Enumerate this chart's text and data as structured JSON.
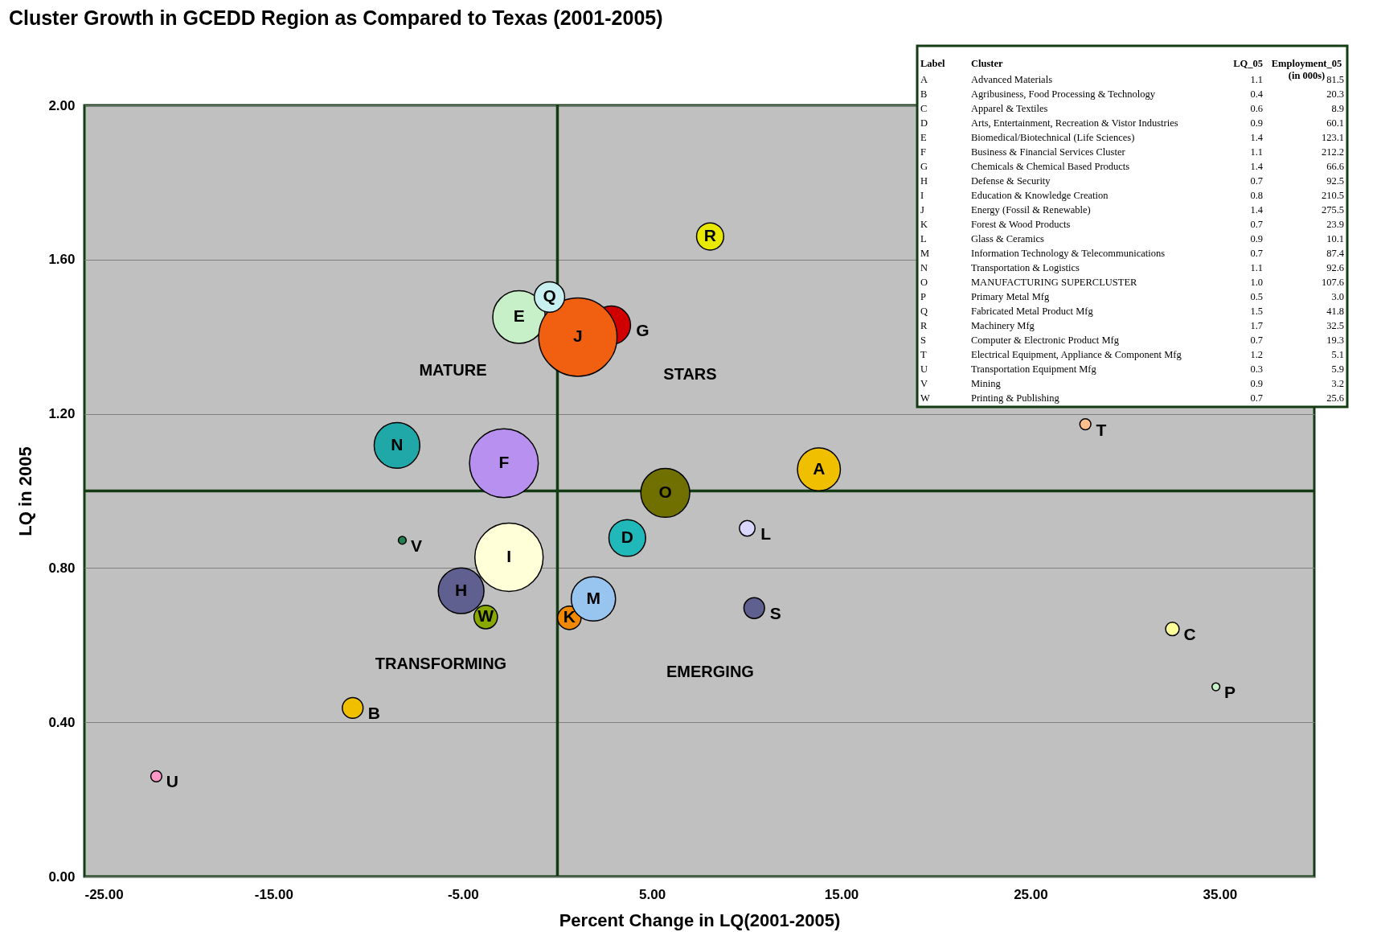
{
  "chart_data": {
    "type": "bubble",
    "title": "Cluster Growth in GCEDD Region as Compared to Texas (2001-2005)",
    "xlabel": "Percent Change in LQ(2001-2005)",
    "ylabel": "LQ in 2005",
    "xlim": [
      -25,
      40
    ],
    "ylim": [
      0,
      2
    ],
    "xticks": [
      {
        "value": -25,
        "label": "-25.00"
      },
      {
        "value": -15,
        "label": "-15.00"
      },
      {
        "value": -5,
        "label": "-5.00"
      },
      {
        "value": 5,
        "label": "5.00"
      },
      {
        "value": 15,
        "label": "15.00"
      },
      {
        "value": 25,
        "label": "25.00"
      },
      {
        "value": 35,
        "label": "35.00"
      }
    ],
    "yticks": [
      {
        "value": 0,
        "label": "0.00"
      },
      {
        "value": 0.4,
        "label": "0.40"
      },
      {
        "value": 0.8,
        "label": "0.80"
      },
      {
        "value": 1.2,
        "label": "1.20"
      },
      {
        "value": 1.6,
        "label": "1.60"
      },
      {
        "value": 2,
        "label": "2.00"
      }
    ],
    "grid": "y",
    "legend": false,
    "ref_lines": [
      {
        "axis": "x",
        "value": 0,
        "color": "#143c14"
      },
      {
        "axis": "y",
        "value": 1,
        "color": "#143c14"
      }
    ],
    "series": [
      {
        "name": "A",
        "color": "#f0c000",
        "x": [
          13.82
        ],
        "values": [
          1.056
        ],
        "sizes": [
          0.3
        ]
      },
      {
        "name": "B",
        "color": "#f0c000",
        "x": [
          -10.82
        ],
        "values": [
          0.437
        ],
        "sizes": [
          0.07
        ]
      },
      {
        "name": "C",
        "color": "#ffff99",
        "x": [
          32.5
        ],
        "values": [
          0.642
        ],
        "sizes": [
          0.03
        ]
      },
      {
        "name": "D",
        "color": "#20b8b8",
        "x": [
          3.69
        ],
        "values": [
          0.878
        ],
        "sizes": [
          0.22
        ]
      },
      {
        "name": "E",
        "color": "#c8f0c8",
        "x": [
          -2.03
        ],
        "values": [
          1.451
        ],
        "sizes": [
          0.45
        ]
      },
      {
        "name": "F",
        "color": "#b890f0",
        "x": [
          -2.83
        ],
        "values": [
          1.072
        ],
        "sizes": [
          0.77
        ]
      },
      {
        "name": "G",
        "color": "#d00000",
        "x": [
          2.85
        ],
        "values": [
          1.43
        ],
        "sizes": [
          0.24
        ]
      },
      {
        "name": "H",
        "color": "#606090",
        "x": [
          -5.09
        ],
        "values": [
          0.741
        ],
        "sizes": [
          0.34
        ]
      },
      {
        "name": "I",
        "color": "#ffffd8",
        "x": [
          -2.56
        ],
        "values": [
          0.828
        ],
        "sizes": [
          0.76
        ]
      },
      {
        "name": "J",
        "color": "#f06010",
        "x": [
          1.08
        ],
        "values": [
          1.399
        ],
        "sizes": [
          1
        ]
      },
      {
        "name": "K",
        "color": "#f08800",
        "x": [
          0.63
        ],
        "values": [
          0.671
        ],
        "sizes": [
          0.09
        ]
      },
      {
        "name": "L",
        "color": "#d8d8ff",
        "x": [
          10.03
        ],
        "values": [
          0.903
        ],
        "sizes": [
          0.04
        ]
      },
      {
        "name": "M",
        "color": "#98c4f0",
        "x": [
          1.9
        ],
        "values": [
          0.72
        ],
        "sizes": [
          0.32
        ]
      },
      {
        "name": "N",
        "color": "#20a8a8",
        "x": [
          -8.48
        ],
        "values": [
          1.118
        ],
        "sizes": [
          0.34
        ]
      },
      {
        "name": "O",
        "color": "#707000",
        "x": [
          5.7
        ],
        "values": [
          0.995
        ],
        "sizes": [
          0.39
        ]
      },
      {
        "name": "P",
        "color": "#c8f0c8",
        "x": [
          34.8
        ],
        "values": [
          0.492
        ],
        "sizes": [
          0.01
        ]
      },
      {
        "name": "Q",
        "color": "#c8f0f0",
        "x": [
          -0.42
        ],
        "values": [
          1.503
        ],
        "sizes": [
          0.15
        ]
      },
      {
        "name": "R",
        "color": "#e8e800",
        "x": [
          8.07
        ],
        "values": [
          1.66
        ],
        "sizes": [
          0.12
        ]
      },
      {
        "name": "S",
        "color": "#606090",
        "x": [
          10.4
        ],
        "values": [
          0.696
        ],
        "sizes": [
          0.07
        ]
      },
      {
        "name": "T",
        "color": "#ffc090",
        "x": [
          27.9
        ],
        "values": [
          1.173
        ],
        "sizes": [
          0.02
        ]
      },
      {
        "name": "U",
        "color": "#ff98c8",
        "x": [
          -21.2
        ],
        "values": [
          0.26
        ],
        "sizes": [
          0.02
        ]
      },
      {
        "name": "V",
        "color": "#208050",
        "x": [
          -8.2
        ],
        "values": [
          0.872
        ],
        "sizes": [
          0.01
        ]
      },
      {
        "name": "W",
        "color": "#88a800",
        "x": [
          -3.79
        ],
        "values": [
          0.673
        ],
        "sizes": [
          0.09
        ]
      }
    ],
    "annotations": [
      "MATURE",
      "STARS",
      "TRANSFORMING",
      "EMERGING",
      "Label",
      "Cluster",
      "LQ_05",
      "Employment_05\n(in 000s)",
      "A",
      "Advanced Materials",
      "1.1",
      "81.5",
      "B",
      "Agribusiness, Food Processing & Technology",
      "0.4",
      "20.3",
      "C",
      "Apparel & Textiles",
      "0.6",
      "8.9",
      "D",
      "Arts, Entertainment, Recreation & Vistor Industries",
      "0.9",
      "60.1",
      "E",
      "Biomedical/Biotechnical (Life Sciences)",
      "1.4",
      "123.1",
      "F",
      "Business & Financial Services Cluster",
      "1.1",
      "212.2",
      "G",
      "Chemicals & Chemical Based Products",
      "1.4",
      "66.6",
      "H",
      "Defense & Security",
      "0.7",
      "92.5",
      "I",
      "Education & Knowledge Creation",
      "0.8",
      "210.5",
      "J",
      "Energy (Fossil & Renewable)",
      "1.4",
      "275.5",
      "K",
      "Forest & Wood Products",
      "0.7",
      "23.9",
      "L",
      "Glass & Ceramics",
      "0.9",
      "10.1",
      "M",
      "Information Technology & Telecommunications",
      "0.7",
      "87.4",
      "N",
      "Transportation & Logistics",
      "1.1",
      "92.6",
      "O",
      "MANUFACTURING SUPERCLUSTER",
      "1.0",
      "107.6",
      "P",
      "Primary Metal Mfg",
      "0.5",
      "3.0",
      "Q",
      "Fabricated Metal Product Mfg",
      "1.5",
      "41.8",
      "R",
      "Machinery Mfg",
      "1.7",
      "32.5",
      "S",
      "Computer & Electronic Product Mfg",
      "0.7",
      "19.3",
      "T",
      "Electrical Equipment, Appliance & Component Mfg",
      "1.2",
      "5.1",
      "U",
      "Transportation Equipment Mfg",
      "0.3",
      "5.9",
      "V",
      "Mining",
      "0.9",
      "3.2",
      "W",
      "Printing & Publishing",
      "0.7",
      "25.6"
    ]
  }
}
